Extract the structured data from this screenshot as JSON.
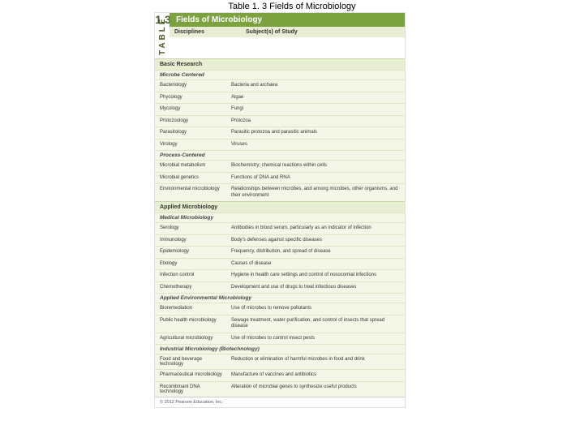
{
  "caption": "Table 1. 3  Fields of Microbiology",
  "tableNumber": "1.3",
  "tableLabel": "TABLE",
  "titleBar": "Fields of Microbiology",
  "headers": {
    "c1": "Disciplines",
    "c2": "Subject(s) of Study"
  },
  "sections": [
    {
      "title": "Basic Research",
      "groups": [
        {
          "subtitle": "Microbe Centered",
          "rows": [
            {
              "c1": "Bacteriology",
              "c2": "Bacteria and archaea"
            },
            {
              "c1": "Phycology",
              "c2": "Algae"
            },
            {
              "c1": "Mycology",
              "c2": "Fungi"
            },
            {
              "c1": "Protozoology",
              "c2": "Protozoa"
            },
            {
              "c1": "Parasitology",
              "c2": "Parasitic protozoa and parasitic animals"
            },
            {
              "c1": "Virology",
              "c2": "Viruses"
            }
          ]
        },
        {
          "subtitle": "Process-Centered",
          "rows": [
            {
              "c1": "Microbial metabolism",
              "c2": "Biochemistry; chemical reactions within cells"
            },
            {
              "c1": "Microbial genetics",
              "c2": "Functions of DNA and RNA"
            },
            {
              "c1": "Environmental microbiology",
              "c2": "Relationships between microbes, and among microbes, other organisms, and their environment"
            }
          ]
        }
      ]
    },
    {
      "title": "Applied Microbiology",
      "groups": [
        {
          "subtitle": "Medical Microbiology",
          "rows": [
            {
              "c1": "Serology",
              "c2": "Antibodies in blood serum, particularly as an indicator of infection"
            },
            {
              "c1": "Immunology",
              "c2": "Body's defenses against specific diseases"
            },
            {
              "c1": "Epidemiology",
              "c2": "Frequency, distribution, and spread of disease"
            },
            {
              "c1": "Etiology",
              "c2": "Causes of disease"
            },
            {
              "c1": "Infection control",
              "c2": "Hygiene in health care settings and control of nosocomial infections"
            },
            {
              "c1": "Chemotherapy",
              "c2": "Development and use of drugs to treat infectious diseases"
            }
          ]
        },
        {
          "subtitle": "Applied Environmental Microbiology",
          "rows": [
            {
              "c1": "Bioremediation",
              "c2": "Use of microbes to remove pollutants"
            },
            {
              "c1": "Public health microbiology",
              "c2": "Sewage treatment, water purification, and control of insects that spread disease"
            },
            {
              "c1": "Agricultural microbiology",
              "c2": "Use of microbes to control insect pests"
            }
          ]
        },
        {
          "subtitle": "Industrial Microbiology (Biotechnology)",
          "rows": [
            {
              "c1": "Food and beverage technology",
              "c2": "Reduction or elimination of harmful microbes in food and drink"
            },
            {
              "c1": "Pharmaceutical microbiology",
              "c2": "Manufacture of vaccines and antibiotics"
            },
            {
              "c1": "Recombinant DNA technology",
              "c2": "Alteration of microbial genes to synthesize useful products"
            }
          ]
        }
      ]
    }
  ],
  "copyright": "© 2012 Pearson Education, Inc."
}
